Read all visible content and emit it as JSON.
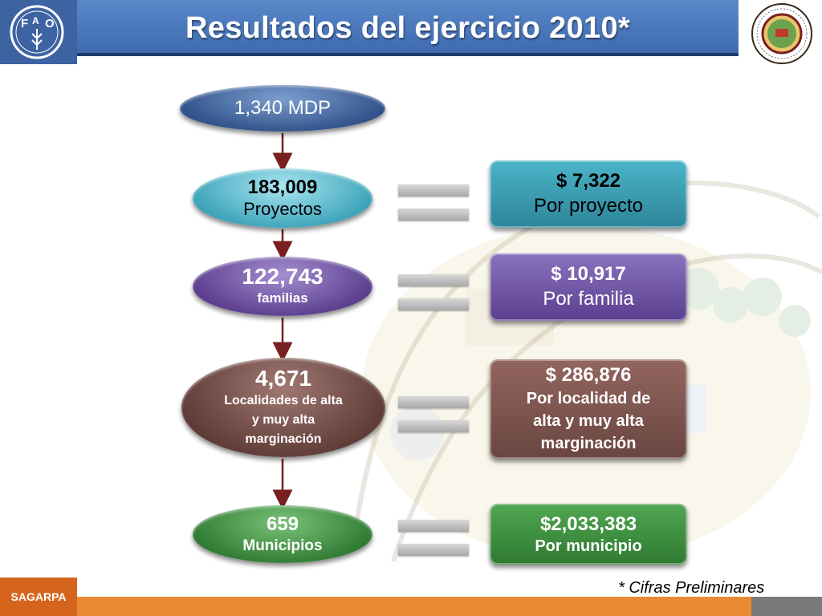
{
  "header": {
    "title": "Resultados del ejercicio 2010*",
    "left_logo": "FAO",
    "right_logo": "PROYECTO ESTRATÉGICO PARA LA SEGURIDAD ALIMENTARIA"
  },
  "flow": {
    "total": "1,340 MDP",
    "proyectos": {
      "value": "183,009",
      "label": "Proyectos"
    },
    "familias": {
      "value": "122,743",
      "label": "familias"
    },
    "localidades": {
      "value": "4,671",
      "label": "Localidades de alta y muy alta marginación"
    },
    "municipios": {
      "value": "659",
      "label": "Municipios"
    }
  },
  "results": {
    "por_proyecto": {
      "value": "$ 7,322",
      "label": "Por proyecto"
    },
    "por_familia": {
      "value": "$ 10,917",
      "label": "Por familia"
    },
    "por_localidad": {
      "value": "$ 286,876",
      "label": "Por localidad de alta y muy alta marginación"
    },
    "por_municipio": {
      "value": "$2,033,383",
      "label": "Por municipio"
    }
  },
  "footer": {
    "brand": "SAGARPA",
    "note": "* Cifras Preliminares"
  },
  "colors": {
    "title_bar": "#4a78bd",
    "total": "#3e63a0",
    "proyectos": "#3fa4ba",
    "familias": "#5f4392",
    "localidades": "#6b4641",
    "municipios": "#348038",
    "footer": "#ea8a33"
  },
  "icons": [
    "fao-logo-icon",
    "seal-logo-icon",
    "equals-icon",
    "arrow-down-icon"
  ]
}
